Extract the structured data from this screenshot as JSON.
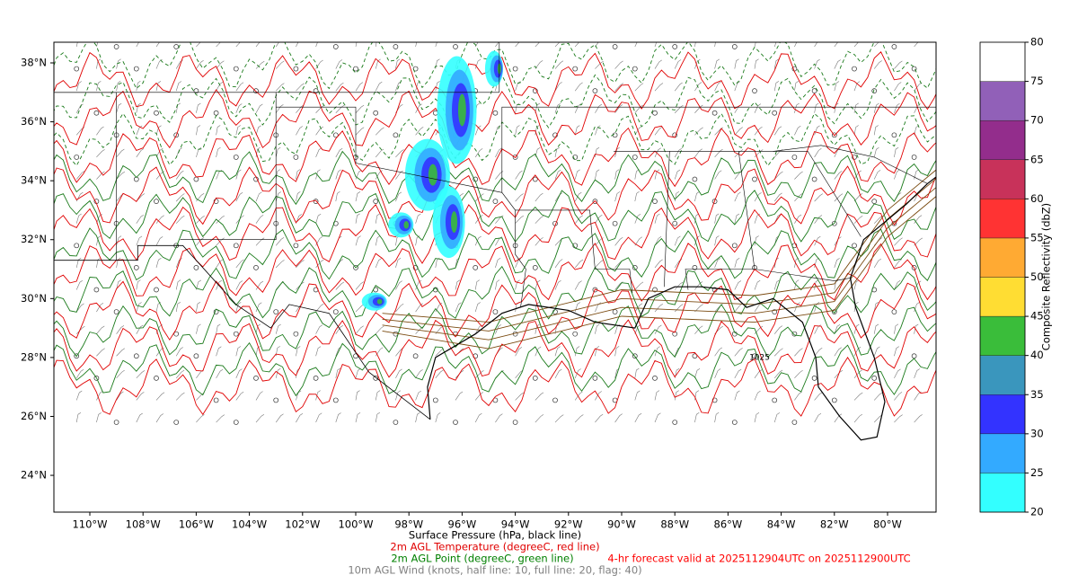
{
  "map": {
    "lon_ticks": [
      {
        "value": -110,
        "label": "110°W"
      },
      {
        "value": -108,
        "label": "108°W"
      },
      {
        "value": -106,
        "label": "106°W"
      },
      {
        "value": -104,
        "label": "104°W"
      },
      {
        "value": -102,
        "label": "102°W"
      },
      {
        "value": -100,
        "label": "100°W"
      },
      {
        "value": -98,
        "label": "98°W"
      },
      {
        "value": -96,
        "label": "96°W"
      },
      {
        "value": -94,
        "label": "94°W"
      },
      {
        "value": -92,
        "label": "92°W"
      },
      {
        "value": -90,
        "label": "90°W"
      },
      {
        "value": -88,
        "label": "88°W"
      },
      {
        "value": -86,
        "label": "86°W"
      },
      {
        "value": -84,
        "label": "84°W"
      },
      {
        "value": -82,
        "label": "82°W"
      },
      {
        "value": -80,
        "label": "80°W"
      }
    ],
    "lat_ticks": [
      {
        "value": 38,
        "label": "38°N"
      },
      {
        "value": 36,
        "label": "36°N"
      },
      {
        "value": 34,
        "label": "34°N"
      },
      {
        "value": 32,
        "label": "32°N"
      },
      {
        "value": 30,
        "label": "30°N"
      },
      {
        "value": 28,
        "label": "28°N"
      },
      {
        "value": 26,
        "label": "26°N"
      },
      {
        "value": 24,
        "label": "24°N"
      }
    ],
    "isobar_label": "1025"
  },
  "colorbar": {
    "label": "Composite Reflectivity (dbZ)",
    "levels": [
      20,
      25,
      30,
      35,
      40,
      45,
      50,
      55,
      60,
      65,
      70,
      75,
      80
    ],
    "colors": [
      "#33ffff",
      "#33aaff",
      "#3333ff",
      "#3a96bd",
      "#3abd3a",
      "#ffdd33",
      "#ffaa33",
      "#ff3333",
      "#c8325a",
      "#932d8c",
      "#9160b8",
      "#ffffff"
    ]
  },
  "footer": {
    "pressure": "Surface Pressure (hPa, black line)",
    "temperature": "2m AGL Temperature (degreeC, red line)",
    "dewpoint": "2m AGL Point (degreeC, green line)",
    "forecast": "4-hr forecast valid at 2025112904UTC on 2025112900UTC",
    "wind": "10m AGL Wind (knots, half line: 10, full line: 20, flag: 40)"
  }
}
